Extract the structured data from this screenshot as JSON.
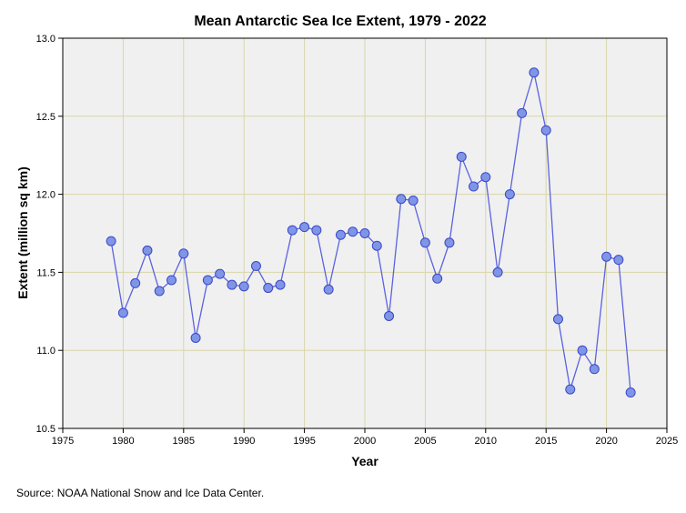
{
  "chart_data": {
    "type": "line",
    "title": "Mean Antarctic Sea Ice Extent, 1979 - 2022",
    "xlabel": "Year",
    "ylabel": "Extent (million sq km)",
    "xlim": [
      1975,
      2025
    ],
    "ylim": [
      10.5,
      13.0
    ],
    "x_ticks": [
      "1975",
      "1980",
      "1985",
      "1990",
      "1995",
      "2000",
      "2005",
      "2010",
      "2015",
      "2020",
      "2025"
    ],
    "y_ticks": [
      "10.5",
      "11.0",
      "11.5",
      "12.0",
      "12.5",
      "13.0"
    ],
    "grid": true,
    "series": [
      {
        "name": "Extent",
        "color": "#5b62e0",
        "marker_color": "#7f95e6",
        "x": [
          1979,
          1980,
          1981,
          1982,
          1983,
          1984,
          1985,
          1986,
          1987,
          1988,
          1989,
          1990,
          1991,
          1992,
          1993,
          1994,
          1995,
          1996,
          1997,
          1998,
          1999,
          2000,
          2001,
          2002,
          2003,
          2004,
          2005,
          2006,
          2007,
          2008,
          2009,
          2010,
          2011,
          2012,
          2013,
          2014,
          2015,
          2016,
          2017,
          2018,
          2019,
          2020,
          2021,
          2022
        ],
        "y": [
          11.7,
          11.24,
          11.43,
          11.64,
          11.38,
          11.45,
          11.62,
          11.08,
          11.45,
          11.49,
          11.42,
          11.41,
          11.54,
          11.4,
          11.42,
          11.77,
          11.79,
          11.77,
          11.39,
          11.74,
          11.76,
          11.75,
          11.67,
          11.22,
          11.97,
          11.96,
          11.69,
          11.46,
          11.69,
          12.24,
          12.05,
          12.11,
          11.5,
          12.0,
          12.52,
          12.78,
          12.41,
          11.2,
          10.75,
          11.0,
          10.88,
          11.6,
          11.58,
          10.73
        ]
      }
    ],
    "source": "Source: NOAA National Snow and Ice Data Center."
  }
}
